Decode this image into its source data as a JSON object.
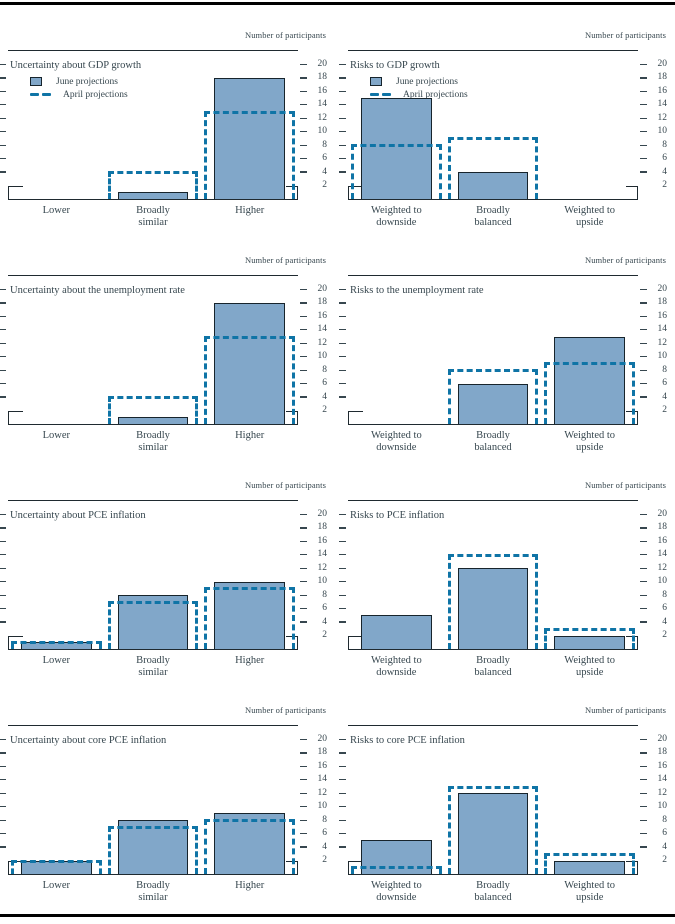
{
  "page": {
    "y_axis_label": "Number of participants",
    "legend": {
      "june": "June projections",
      "april": "April projections"
    },
    "colors": {
      "bar_fill": "#81A7C9",
      "bar_border": "#17242C",
      "april_line": "#0F74A6",
      "text": "#37474F",
      "rule": "#000000"
    }
  },
  "chart_data": [
    {
      "type": "bar",
      "slug": "uncertainty-gdp-growth",
      "title": "Uncertainty about GDP growth",
      "ylabel": "Number of participants",
      "ylim": [
        0,
        22
      ],
      "yticks": [
        2,
        4,
        6,
        8,
        10,
        12,
        14,
        16,
        18,
        20
      ],
      "grid": false,
      "legend": true,
      "legend_position": "top-left",
      "categories": [
        "Lower",
        "Broadly\nsimilar",
        "Higher"
      ],
      "series": [
        {
          "name": "June projections",
          "style": "bar",
          "values": [
            0,
            1,
            18
          ]
        },
        {
          "name": "April projections",
          "style": "dashed-outline",
          "values": [
            0,
            4,
            13
          ]
        }
      ]
    },
    {
      "type": "bar",
      "slug": "risks-gdp-growth",
      "title": "Risks to GDP growth",
      "ylabel": "Number of participants",
      "ylim": [
        0,
        22
      ],
      "yticks": [
        2,
        4,
        6,
        8,
        10,
        12,
        14,
        16,
        18,
        20
      ],
      "grid": false,
      "legend": true,
      "legend_position": "top-left",
      "categories": [
        "Weighted to\ndownside",
        "Broadly\nbalanced",
        "Weighted to\nupside"
      ],
      "series": [
        {
          "name": "June projections",
          "style": "bar",
          "values": [
            15,
            4,
            0
          ]
        },
        {
          "name": "April projections",
          "style": "dashed-outline",
          "values": [
            8,
            9,
            0
          ]
        }
      ]
    },
    {
      "type": "bar",
      "slug": "uncertainty-unemployment-rate",
      "title": "Uncertainty about the unemployment rate",
      "ylabel": "Number of participants",
      "ylim": [
        0,
        22
      ],
      "yticks": [
        2,
        4,
        6,
        8,
        10,
        12,
        14,
        16,
        18,
        20
      ],
      "grid": false,
      "legend": false,
      "categories": [
        "Lower",
        "Broadly\nsimilar",
        "Higher"
      ],
      "series": [
        {
          "name": "June projections",
          "style": "bar",
          "values": [
            0,
            1,
            18
          ]
        },
        {
          "name": "April projections",
          "style": "dashed-outline",
          "values": [
            0,
            4,
            13
          ]
        }
      ]
    },
    {
      "type": "bar",
      "slug": "risks-unemployment-rate",
      "title": "Risks to the unemployment rate",
      "ylabel": "Number of participants",
      "ylim": [
        0,
        22
      ],
      "yticks": [
        2,
        4,
        6,
        8,
        10,
        12,
        14,
        16,
        18,
        20
      ],
      "grid": false,
      "legend": false,
      "categories": [
        "Weighted to\ndownside",
        "Broadly\nbalanced",
        "Weighted to\nupside"
      ],
      "series": [
        {
          "name": "June projections",
          "style": "bar",
          "values": [
            0,
            6,
            13
          ]
        },
        {
          "name": "April projections",
          "style": "dashed-outline",
          "values": [
            0,
            8,
            9
          ]
        }
      ]
    },
    {
      "type": "bar",
      "slug": "uncertainty-pce-inflation",
      "title": "Uncertainty about PCE inflation",
      "ylabel": "Number of participants",
      "ylim": [
        0,
        22
      ],
      "yticks": [
        2,
        4,
        6,
        8,
        10,
        12,
        14,
        16,
        18,
        20
      ],
      "grid": false,
      "legend": false,
      "categories": [
        "Lower",
        "Broadly\nsimilar",
        "Higher"
      ],
      "series": [
        {
          "name": "June projections",
          "style": "bar",
          "values": [
            1,
            8,
            10
          ]
        },
        {
          "name": "April projections",
          "style": "dashed-outline",
          "values": [
            1,
            7,
            9
          ]
        }
      ]
    },
    {
      "type": "bar",
      "slug": "risks-pce-inflation",
      "title": "Risks to PCE inflation",
      "ylabel": "Number of participants",
      "ylim": [
        0,
        22
      ],
      "yticks": [
        2,
        4,
        6,
        8,
        10,
        12,
        14,
        16,
        18,
        20
      ],
      "grid": false,
      "legend": false,
      "categories": [
        "Weighted to\ndownside",
        "Broadly\nbalanced",
        "Weighted to\nupside"
      ],
      "series": [
        {
          "name": "June projections",
          "style": "bar",
          "values": [
            5,
            12,
            2
          ]
        },
        {
          "name": "April projections",
          "style": "dashed-outline",
          "values": [
            0,
            14,
            3
          ]
        }
      ]
    },
    {
      "type": "bar",
      "slug": "uncertainty-core-pce-inflation",
      "title": "Uncertainty about core PCE inflation",
      "ylabel": "Number of participants",
      "ylim": [
        0,
        22
      ],
      "yticks": [
        2,
        4,
        6,
        8,
        10,
        12,
        14,
        16,
        18,
        20
      ],
      "grid": false,
      "legend": false,
      "categories": [
        "Lower",
        "Broadly\nsimilar",
        "Higher"
      ],
      "series": [
        {
          "name": "June projections",
          "style": "bar",
          "values": [
            2,
            8,
            9
          ]
        },
        {
          "name": "April projections",
          "style": "dashed-outline",
          "values": [
            2,
            7,
            8
          ]
        }
      ]
    },
    {
      "type": "bar",
      "slug": "risks-core-pce-inflation",
      "title": "Risks to core PCE inflation",
      "ylabel": "Number of participants",
      "ylim": [
        0,
        22
      ],
      "yticks": [
        2,
        4,
        6,
        8,
        10,
        12,
        14,
        16,
        18,
        20
      ],
      "grid": false,
      "legend": false,
      "categories": [
        "Weighted to\ndownside",
        "Broadly\nbalanced",
        "Weighted to\nupside"
      ],
      "series": [
        {
          "name": "June projections",
          "style": "bar",
          "values": [
            5,
            12,
            2
          ]
        },
        {
          "name": "April projections",
          "style": "dashed-outline",
          "values": [
            1,
            13,
            3
          ]
        }
      ]
    }
  ]
}
